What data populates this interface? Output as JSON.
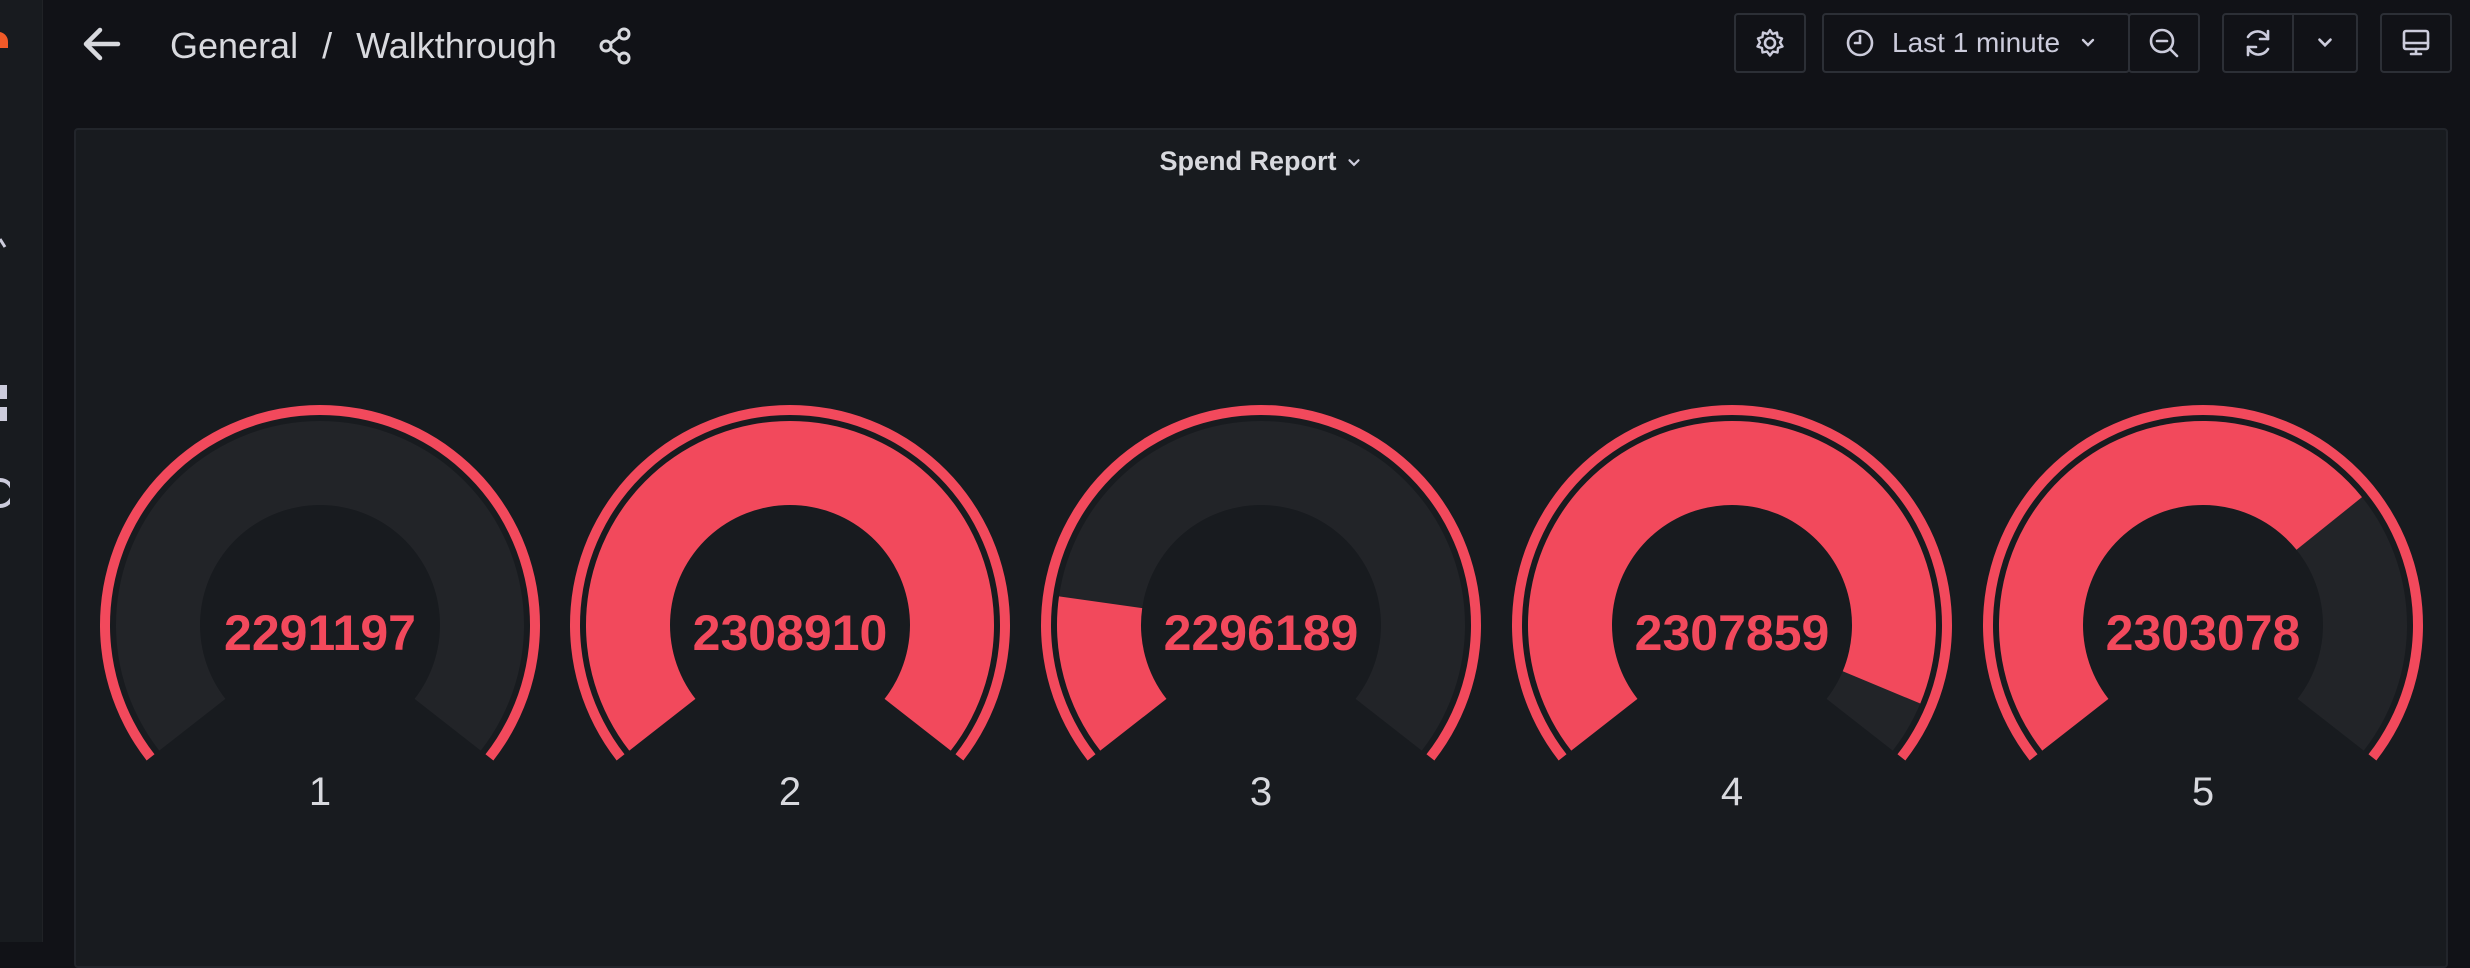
{
  "breadcrumb": {
    "folder": "General",
    "separator": "/",
    "dashboard": "Walkthrough"
  },
  "icons": {
    "back": "arrow-left-icon",
    "share": "share-icon",
    "settings": "gear-icon",
    "clock": "clock-icon",
    "zoom_out": "zoom-out-icon",
    "refresh": "refresh-icon",
    "chevron": "chevron-down-icon",
    "tv": "tv-monitor-icon"
  },
  "time_picker": {
    "label": "Last 1 minute"
  },
  "panel": {
    "title": "Spend Report"
  },
  "colors": {
    "background": "#111217",
    "panel": "#181b1f",
    "gauge_fill": "#f2495c",
    "gauge_track": "#222428",
    "text": "#ccccdc"
  },
  "chart_data": {
    "type": "gauge",
    "title": "Spend Report",
    "series": [
      {
        "name": "1",
        "value": 2291197,
        "fraction": 0.0
      },
      {
        "name": "2",
        "value": 2308910,
        "fraction": 1.0
      },
      {
        "name": "3",
        "value": 2296189,
        "fraction": 0.18
      },
      {
        "name": "4",
        "value": 2307859,
        "fraction": 0.94
      },
      {
        "name": "5",
        "value": 2303078,
        "fraction": 0.7
      }
    ]
  }
}
